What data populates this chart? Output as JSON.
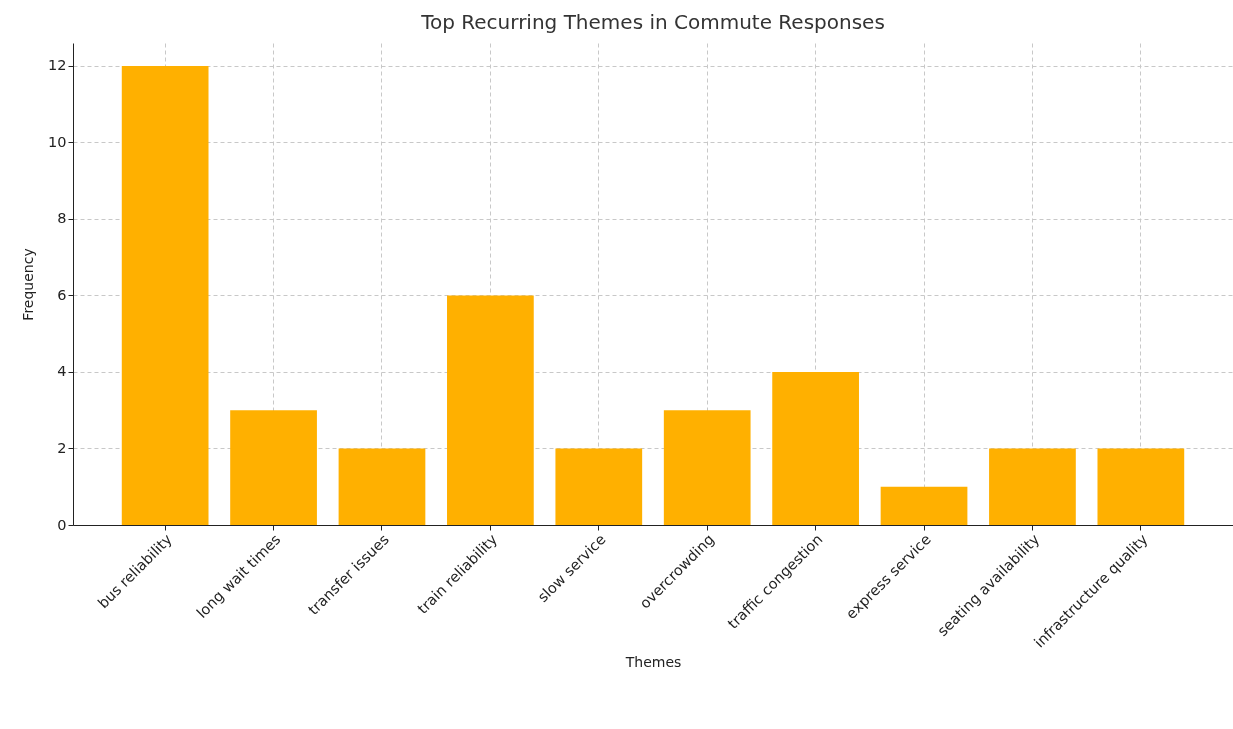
{
  "chart_data": {
    "type": "bar",
    "title": "Top Recurring Themes in Commute Responses",
    "xlabel": "Themes",
    "ylabel": "Frequency",
    "categories": [
      "bus reliability",
      "long wait times",
      "transfer issues",
      "train reliability",
      "slow service",
      "overcrowding",
      "traffic congestion",
      "express service",
      "seating availability",
      "infrastructure quality"
    ],
    "values": [
      12,
      3,
      2,
      6,
      2,
      3,
      4,
      1,
      2,
      2
    ],
    "color": "#ffb000",
    "ylim": [
      0,
      12.6
    ],
    "yticks": [
      0,
      2,
      4,
      6,
      8,
      10,
      12
    ],
    "grid": true
  }
}
